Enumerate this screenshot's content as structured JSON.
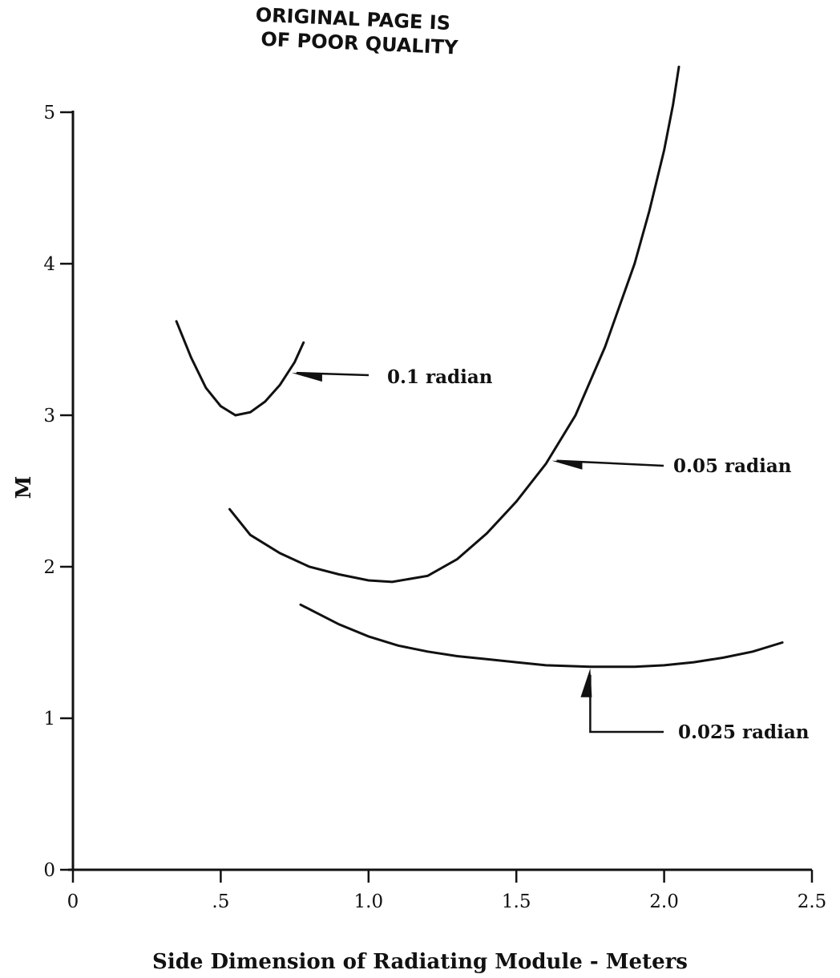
{
  "stamp": {
    "line1": "ORIGINAL PAGE IS",
    "line2": "OF POOR QUALITY"
  },
  "chart_data": {
    "type": "line",
    "title": "",
    "xlabel": "Side Dimension of Radiating Module - Meters",
    "ylabel": "M",
    "xlim": [
      0,
      2.5
    ],
    "ylim": [
      0,
      5
    ],
    "x_tick_labels": [
      "0",
      ".5",
      "1.0",
      "1.5",
      "2.0",
      "2.5"
    ],
    "x_tick_values": [
      0,
      0.5,
      1.0,
      1.5,
      2.0,
      2.5
    ],
    "y_tick_labels": [
      "0",
      "1",
      "2",
      "3",
      "4",
      "5"
    ],
    "y_tick_values": [
      0,
      1,
      2,
      3,
      4,
      5
    ],
    "grid": false,
    "series": [
      {
        "label": "0.1 radian",
        "x": [
          0.35,
          0.4,
          0.45,
          0.5,
          0.55,
          0.6,
          0.65,
          0.7,
          0.75,
          0.78
        ],
        "y": [
          3.62,
          3.38,
          3.18,
          3.06,
          3.0,
          3.02,
          3.09,
          3.2,
          3.35,
          3.48
        ],
        "annotation_point": {
          "x": 0.74,
          "y": 3.28
        }
      },
      {
        "label": "0.05 radian",
        "x": [
          0.53,
          0.6,
          0.7,
          0.8,
          0.9,
          1.0,
          1.08,
          1.2,
          1.3,
          1.4,
          1.5,
          1.6,
          1.7,
          1.8,
          1.9,
          1.95,
          2.0,
          2.03,
          2.05
        ],
        "y": [
          2.38,
          2.21,
          2.09,
          2.0,
          1.95,
          1.91,
          1.9,
          1.94,
          2.05,
          2.22,
          2.43,
          2.68,
          3.0,
          3.45,
          4.0,
          4.35,
          4.75,
          5.05,
          5.3
        ],
        "annotation_point": {
          "x": 1.62,
          "y": 2.7
        }
      },
      {
        "label": "0.025 radian",
        "x": [
          0.77,
          0.9,
          1.0,
          1.1,
          1.2,
          1.3,
          1.4,
          1.5,
          1.6,
          1.75,
          1.9,
          2.0,
          2.1,
          2.2,
          2.3,
          2.4
        ],
        "y": [
          1.75,
          1.62,
          1.54,
          1.48,
          1.44,
          1.41,
          1.39,
          1.37,
          1.35,
          1.34,
          1.34,
          1.35,
          1.37,
          1.4,
          1.44,
          1.5
        ],
        "annotation_point": {
          "x": 1.75,
          "y": 1.34
        }
      }
    ]
  }
}
